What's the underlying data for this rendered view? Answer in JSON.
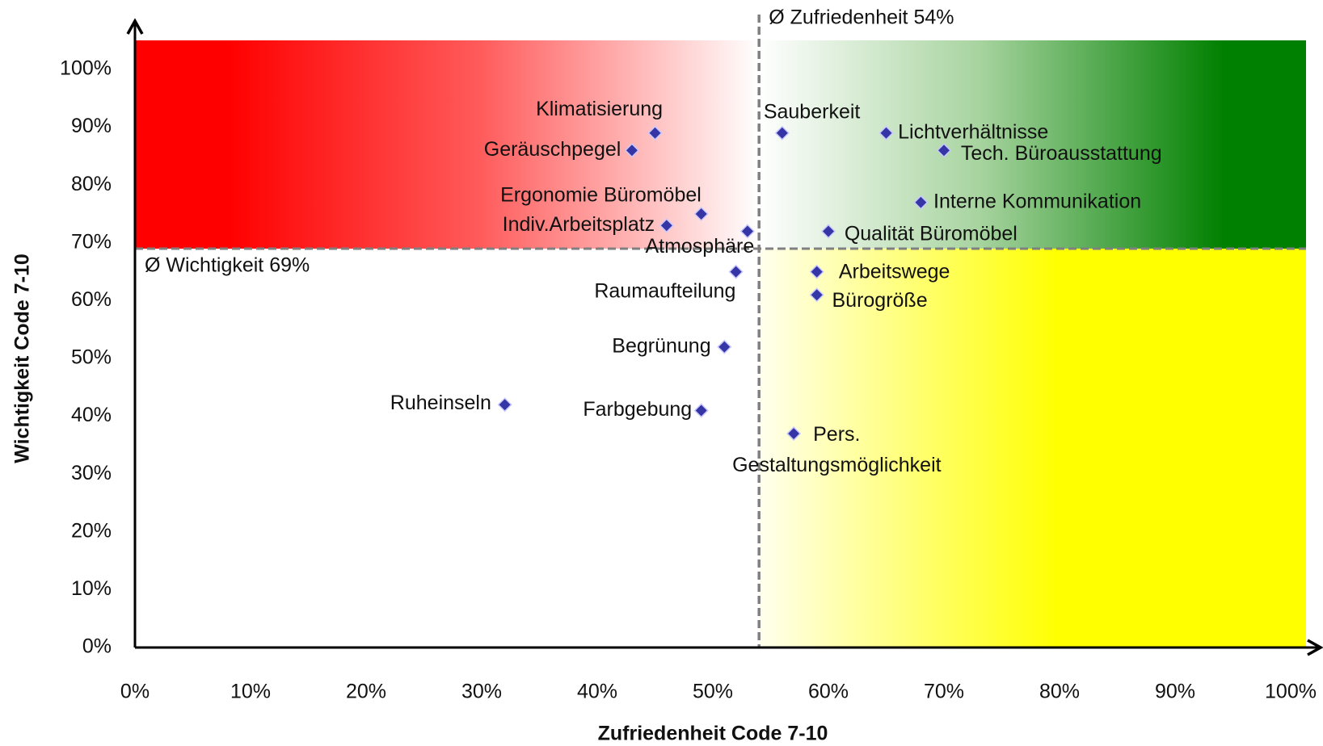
{
  "chart_data": {
    "type": "scatter",
    "xlabel": "Zufriedenheit Code 7-10",
    "ylabel": "Wichtigkeit Code 7-10",
    "xlim": [
      0,
      100
    ],
    "ylim": [
      0,
      100
    ],
    "xticks": [
      {
        "value": 0,
        "label": "0%"
      },
      {
        "value": 10,
        "label": "10%"
      },
      {
        "value": 20,
        "label": "20%"
      },
      {
        "value": 30,
        "label": "30%"
      },
      {
        "value": 40,
        "label": "40%"
      },
      {
        "value": 50,
        "label": "50%"
      },
      {
        "value": 60,
        "label": "60%"
      },
      {
        "value": 70,
        "label": "70%"
      },
      {
        "value": 80,
        "label": "80%"
      },
      {
        "value": 90,
        "label": "90%"
      },
      {
        "value": 100,
        "label": "100%"
      }
    ],
    "yticks": [
      {
        "value": 0,
        "label": "0%"
      },
      {
        "value": 10,
        "label": "10%"
      },
      {
        "value": 20,
        "label": "20%"
      },
      {
        "value": 30,
        "label": "30%"
      },
      {
        "value": 40,
        "label": "40%"
      },
      {
        "value": 50,
        "label": "50%"
      },
      {
        "value": 60,
        "label": "60%"
      },
      {
        "value": 70,
        "label": "70%"
      },
      {
        "value": 80,
        "label": "80%"
      },
      {
        "value": 90,
        "label": "90%"
      },
      {
        "value": 100,
        "label": "100%"
      }
    ],
    "color": "#3535a5",
    "point_labels": [
      "Klimatisierung",
      "Geräuschpegel",
      "Ergonomie Büromöbel",
      "Indiv.Arbeitsplatz",
      "Atmosphäre",
      "Raumaufteilung",
      "Begrünung",
      "Ruheinseln",
      "Farbgebung",
      "Pers. Gestaltungsmöglichkeit",
      "Sauberkeit",
      "Lichtverhältnisse",
      "Tech. Büroausstattung",
      "Interne Kommunikation",
      "Qualität Büromöbel",
      "Arbeitswege",
      "Bürogröße"
    ],
    "x": [
      45,
      43,
      49,
      46,
      53,
      52,
      51,
      32,
      49,
      57,
      56,
      65,
      70,
      68,
      60,
      59,
      59
    ],
    "values": [
      89,
      86,
      75,
      73,
      72,
      65,
      52,
      42,
      41,
      37,
      89,
      89,
      86,
      77,
      72,
      65,
      61
    ],
    "annotations": [
      {
        "text": "Ø Zufriedenheit 54%",
        "axis": "x",
        "value": 54
      },
      {
        "text": "Ø Wichtigkeit 69%",
        "axis": "y",
        "value": 69
      }
    ]
  }
}
